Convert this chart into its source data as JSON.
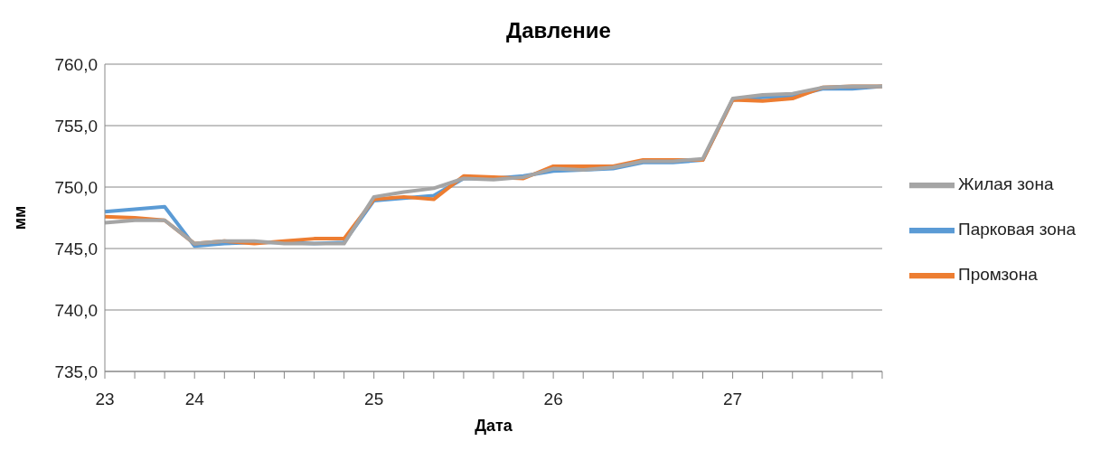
{
  "chart_data": {
    "type": "line",
    "title": "Давление",
    "xlabel": "Дата",
    "ylabel": "мм",
    "categories": [
      "23",
      null,
      null,
      "24",
      null,
      null,
      null,
      null,
      null,
      "25",
      null,
      null,
      null,
      null,
      null,
      "26",
      null,
      null,
      null,
      null,
      null,
      "27",
      null,
      null,
      null,
      null,
      null
    ],
    "series": [
      {
        "name": "Парковая зона",
        "color": "#5b9bd5",
        "values": [
          748.0,
          748.2,
          748.4,
          745.2,
          745.4,
          745.5,
          745.5,
          745.4,
          745.5,
          748.9,
          749.1,
          749.3,
          750.7,
          750.7,
          750.9,
          751.3,
          751.4,
          751.5,
          752.0,
          752.0,
          752.2,
          757.1,
          757.3,
          757.4,
          758.0,
          758.0,
          758.2
        ]
      },
      {
        "name": "Промзона",
        "color": "#ed7d31",
        "values": [
          747.6,
          747.5,
          747.3,
          745.4,
          745.6,
          745.4,
          745.6,
          745.8,
          745.8,
          749.0,
          749.2,
          749.0,
          750.9,
          750.8,
          750.7,
          751.7,
          751.7,
          751.7,
          752.2,
          752.2,
          752.2,
          757.1,
          757.0,
          757.2,
          758.1,
          758.2,
          758.2
        ]
      },
      {
        "name": "Жилая зона",
        "color": "#a5a5a5",
        "values": [
          747.1,
          747.3,
          747.3,
          745.4,
          745.6,
          745.6,
          745.4,
          745.4,
          745.4,
          749.2,
          749.6,
          749.9,
          750.7,
          750.6,
          750.8,
          751.5,
          751.4,
          751.6,
          752.1,
          752.1,
          752.3,
          757.2,
          757.5,
          757.6,
          758.1,
          758.2,
          758.2
        ]
      }
    ],
    "ylim": [
      735,
      760
    ],
    "yticks": [
      {
        "value": 735,
        "label": "735,0"
      },
      {
        "value": 740,
        "label": "740,0"
      },
      {
        "value": 745,
        "label": "745,0"
      },
      {
        "value": 750,
        "label": "750,0"
      },
      {
        "value": 755,
        "label": "755,0"
      },
      {
        "value": 760,
        "label": "760,0"
      }
    ],
    "grid": "y",
    "legend": "right",
    "marker": "none",
    "line_style": "solid"
  }
}
